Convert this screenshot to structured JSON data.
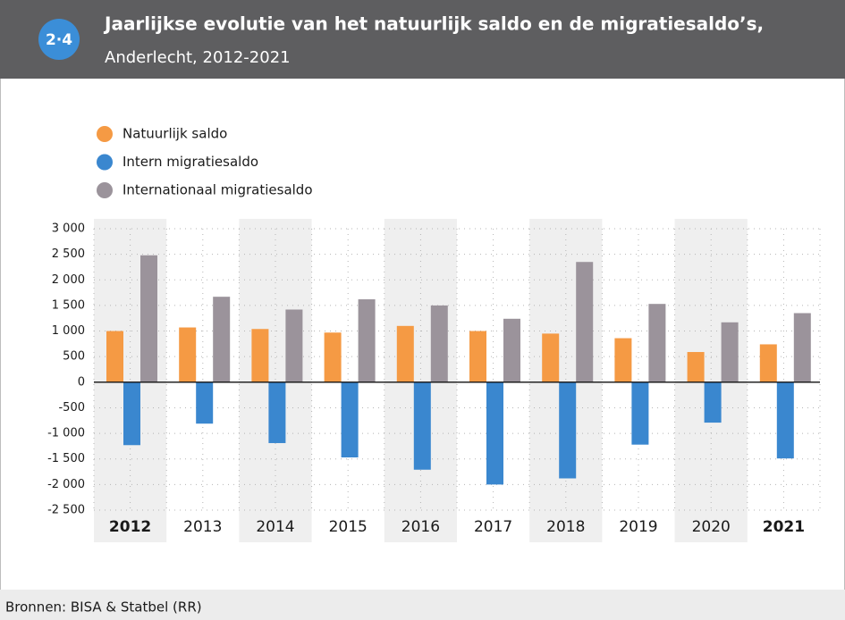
{
  "chart_data": {
    "type": "bar",
    "badge": "2·4",
    "title": "Jaarlijkse evolutie van het natuurlijk saldo en de migratiesaldo’s,",
    "subtitle": "Anderlecht, 2012-2021",
    "source": "Bronnen: BISA & Statbel (RR)",
    "categories": [
      "2012",
      "2013",
      "2014",
      "2015",
      "2016",
      "2017",
      "2018",
      "2019",
      "2020",
      "2021"
    ],
    "series": [
      {
        "name": "Natuurlijk saldo",
        "color": "#f59a44",
        "values": [
          1000,
          1070,
          1040,
          970,
          1100,
          1000,
          950,
          860,
          590,
          740
        ]
      },
      {
        "name": "Intern migratiesaldo",
        "color": "#3a87cf",
        "values": [
          -1230,
          -810,
          -1190,
          -1470,
          -1710,
          -2000,
          -1880,
          -1220,
          -790,
          -1490
        ]
      },
      {
        "name": "Internationaal migratiesaldo",
        "color": "#9b939b",
        "values": [
          2480,
          1670,
          1420,
          1620,
          1500,
          1240,
          2350,
          1530,
          1170,
          1350
        ]
      }
    ],
    "ylim": [
      -2500,
      3000
    ],
    "yticks": [
      {
        "value": -2500,
        "label": "-2 500"
      },
      {
        "value": -2000,
        "label": "-2 000"
      },
      {
        "value": -1500,
        "label": "-1 500"
      },
      {
        "value": -1000,
        "label": "-1 000"
      },
      -500,
      0,
      500,
      {
        "value": 1000,
        "label": "1 000"
      },
      {
        "value": 1500,
        "label": "1 500"
      },
      {
        "value": 2000,
        "label": "2 000"
      },
      {
        "value": 2500,
        "label": "2 500"
      },
      {
        "value": 3000,
        "label": "3 000"
      }
    ],
    "grid": true
  }
}
